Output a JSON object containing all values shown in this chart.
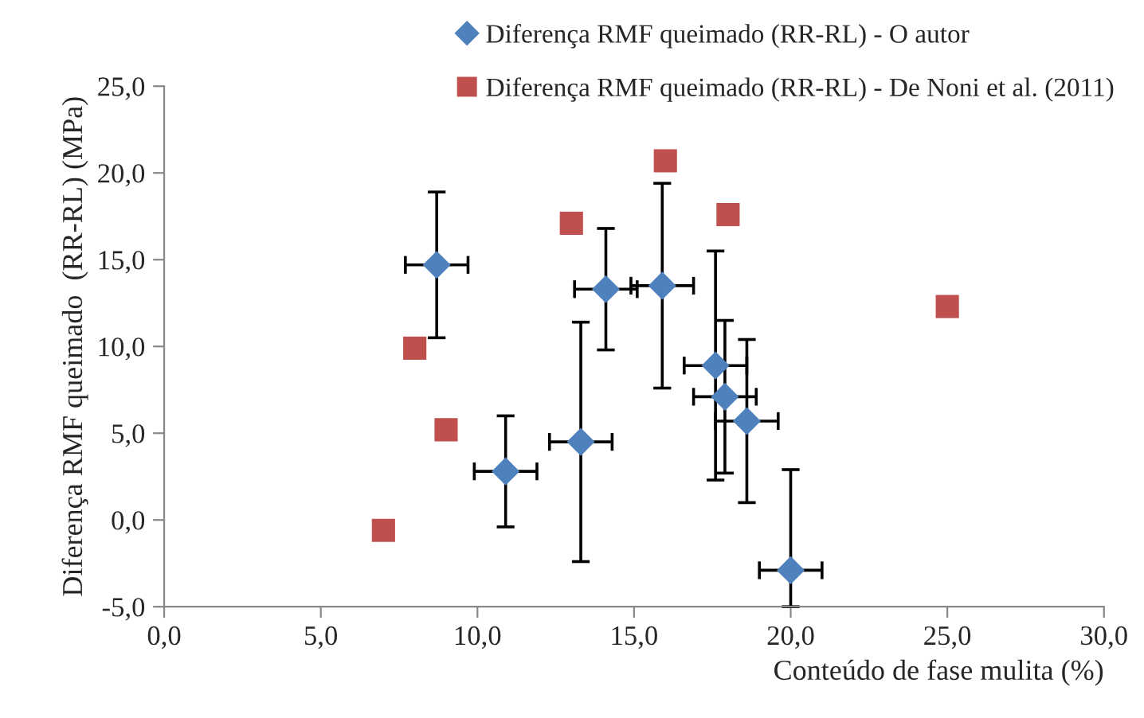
{
  "chart_data": {
    "type": "scatter",
    "xlabel": "Conteúdo de fase mulita (%)",
    "ylabel": "Diferença RMF queimado  (RR-RL) (MPa)",
    "series": [
      {
        "name": "Diferença RMF queimado (RR-RL) - O autor",
        "color": "#4f81bd",
        "marker": "diamond",
        "x": [
          8.7,
          14.1,
          10.9,
          13.3,
          15.9,
          17.6,
          17.9,
          18.6,
          20.0
        ],
        "values": [
          14.7,
          13.3,
          2.8,
          4.5,
          13.5,
          8.9,
          7.1,
          5.7,
          -2.9
        ],
        "errors": [
          4.2,
          3.5,
          3.2,
          6.9,
          5.9,
          6.6,
          4.4,
          4.7,
          [
            -5.0,
            2.9
          ]
        ],
        "xerrors": [
          1.0,
          1.0,
          1.0,
          1.0,
          1.0,
          1.0,
          1.0,
          1.0,
          1.0
        ]
      },
      {
        "name": "Diferença RMF queimado (RR-RL) - De Noni et al. (2011)",
        "color": "#c0504d",
        "marker": "square",
        "x": [
          7.0,
          8.0,
          9.0,
          13.0,
          16.0,
          18.0,
          25.0
        ],
        "values": [
          -0.6,
          9.9,
          5.2,
          17.1,
          20.7,
          17.6,
          12.3
        ]
      }
    ],
    "xlim": [
      0,
      30
    ],
    "ylim": [
      -5,
      25
    ],
    "xticks": [
      {
        "value": 0,
        "label": "0,0"
      },
      {
        "value": 5,
        "label": "5,0"
      },
      {
        "value": 10,
        "label": "10,0"
      },
      {
        "value": 15,
        "label": "15,0"
      },
      {
        "value": 20,
        "label": "20,0"
      },
      {
        "value": 25,
        "label": "25,0"
      },
      {
        "value": 30,
        "label": "30,0"
      }
    ],
    "yticks": [
      {
        "value": -5,
        "label": "-5,0"
      },
      {
        "value": 0,
        "label": "0,0"
      },
      {
        "value": 5,
        "label": "5,0"
      },
      {
        "value": 10,
        "label": "10,0"
      },
      {
        "value": 15,
        "label": "15,0"
      },
      {
        "value": 20,
        "label": "20,0"
      },
      {
        "value": 25,
        "label": "25,0"
      }
    ],
    "grid": false,
    "legend": "top right"
  }
}
